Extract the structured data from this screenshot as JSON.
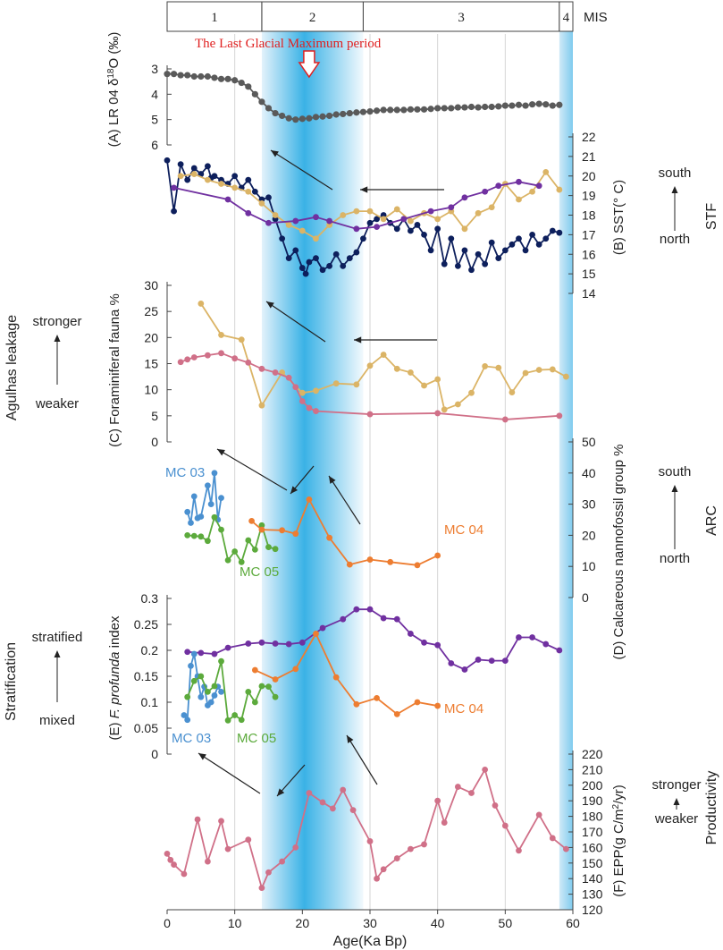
{
  "chart_data": {
    "type": "line",
    "title": "",
    "xlabel": "Age(Ka Bp)",
    "x_ticks": [
      0,
      10,
      20,
      30,
      40,
      50,
      60
    ],
    "xlim": [
      0,
      60
    ],
    "mis": {
      "label": "MIS",
      "stages": [
        {
          "name": "1",
          "start": 0,
          "end": 14
        },
        {
          "name": "2",
          "start": 14,
          "end": 29
        },
        {
          "name": "3",
          "start": 29,
          "end": 58
        },
        {
          "name": "4",
          "start": 58,
          "end": 60
        }
      ]
    },
    "lgm": {
      "label": "The Last Glacial Maximum period",
      "start": 14,
      "end": 29,
      "peak": 21
    },
    "stage4_band": {
      "start": 58,
      "end": 60
    },
    "panels": [
      {
        "id": "A",
        "ylabel": "(A) LR 04  δ18O (‰)",
        "ylabel_main": "(A) LR 04  δ",
        "ylabel_sup": "18",
        "ylabel_tail": "O (‰)",
        "ticks": [
          3,
          4,
          5,
          6
        ],
        "ylim": [
          3,
          6
        ],
        "inverted": true,
        "axis": "left",
        "series": [
          {
            "name": "LR04",
            "color": "#5a5a5a",
            "x": [
              0,
              1,
              2,
              3,
              4,
              5,
              6,
              7,
              8,
              9,
              10,
              11,
              12,
              13,
              14,
              15,
              16,
              17,
              18,
              19,
              20,
              21,
              22,
              23,
              24,
              25,
              26,
              27,
              28,
              29,
              30,
              31,
              32,
              33,
              34,
              35,
              36,
              37,
              38,
              39,
              40,
              41,
              42,
              43,
              44,
              45,
              46,
              47,
              48,
              49,
              50,
              51,
              52,
              53,
              54,
              55,
              56,
              57,
              58
            ],
            "y": [
              3.2,
              3.2,
              3.25,
              3.25,
              3.3,
              3.3,
              3.3,
              3.35,
              3.4,
              3.4,
              3.45,
              3.55,
              3.7,
              4.0,
              4.3,
              4.55,
              4.75,
              4.85,
              4.95,
              5.0,
              4.97,
              4.95,
              4.9,
              4.88,
              4.85,
              4.8,
              4.78,
              4.75,
              4.72,
              4.7,
              4.68,
              4.65,
              4.62,
              4.62,
              4.62,
              4.62,
              4.6,
              4.6,
              4.6,
              4.58,
              4.55,
              4.55,
              4.55,
              4.52,
              4.52,
              4.5,
              4.52,
              4.5,
              4.5,
              4.48,
              4.45,
              4.45,
              4.42,
              4.45,
              4.4,
              4.38,
              4.4,
              4.45,
              4.42
            ]
          }
        ]
      },
      {
        "id": "B",
        "ylabel": "(B) SST(° C)",
        "ticks": [
          14,
          15,
          16,
          17,
          18,
          19,
          20,
          21,
          22
        ],
        "ylim": [
          14,
          22
        ],
        "axis": "right",
        "side_label": "STF",
        "side_top": "south",
        "side_bottom": "north",
        "series": [
          {
            "name": "navy",
            "color": "#0d1f5c",
            "x": [
              0,
              1,
              2,
              3,
              4,
              5,
              6,
              6.5,
              7,
              8,
              9,
              10,
              11,
              12,
              13,
              14,
              15,
              16,
              17,
              18,
              19,
              20,
              20.5,
              21,
              22,
              23,
              24,
              25,
              26,
              27,
              28,
              29,
              30,
              31,
              32,
              33,
              34,
              35,
              36,
              37,
              38,
              39,
              40,
              41,
              42,
              43,
              44,
              45,
              46,
              47,
              48,
              49,
              50,
              51,
              52,
              53,
              54,
              55,
              56,
              57,
              58
            ],
            "y": [
              20.8,
              18.2,
              20.6,
              19.8,
              20.4,
              20.1,
              20.5,
              19.9,
              20.0,
              19.8,
              19.6,
              20.0,
              19.4,
              19.8,
              19.2,
              18.8,
              18.9,
              17.8,
              16.8,
              15.8,
              16.2,
              15.3,
              15.0,
              15.6,
              15.8,
              15.2,
              15.4,
              16.0,
              15.4,
              15.8,
              16.1,
              16.8,
              17.6,
              17.8,
              18.0,
              17.6,
              17.3,
              17.8,
              17.2,
              17.5,
              17.0,
              16.2,
              17.3,
              15.5,
              16.8,
              15.4,
              16.2,
              15.2,
              16.0,
              15.5,
              16.6,
              15.8,
              16.2,
              16.5,
              16.8,
              16.2,
              17.0,
              16.5,
              16.8,
              17.2,
              17.1
            ]
          },
          {
            "name": "tan",
            "color": "#dbb466",
            "x": [
              2,
              4,
              6,
              8,
              10,
              12,
              14,
              16,
              18,
              20,
              22,
              24,
              26,
              28,
              30,
              32,
              34,
              36,
              38,
              40,
              42,
              44,
              46,
              48,
              50,
              52,
              54,
              56,
              58
            ],
            "y": [
              20.0,
              20.1,
              19.8,
              19.6,
              19.4,
              19.2,
              18.6,
              18.0,
              17.5,
              17.2,
              16.8,
              17.5,
              18.0,
              18.2,
              18.2,
              17.8,
              18.3,
              17.7,
              18.1,
              17.8,
              18.2,
              17.3,
              18.1,
              18.4,
              19.6,
              18.8,
              19.2,
              20.2,
              19.3
            ]
          },
          {
            "name": "purple",
            "color": "#7030a0",
            "x": [
              1,
              9,
              12,
              15,
              19,
              22,
              24,
              28,
              31,
              35,
              39,
              42,
              44,
              47,
              49,
              52,
              55
            ],
            "y": [
              19.4,
              18.8,
              18.1,
              17.6,
              17.7,
              17.9,
              17.7,
              17.3,
              17.4,
              17.8,
              18.2,
              18.4,
              18.9,
              19.2,
              19.5,
              19.7,
              19.5
            ]
          }
        ]
      },
      {
        "id": "C",
        "ylabel": "(C) Foraminiferal fauna %",
        "ticks": [
          0,
          5,
          10,
          15,
          20,
          25,
          30
        ],
        "ylim": [
          0,
          30
        ],
        "axis": "left",
        "side_label": "Agulhas leakage",
        "side_top": "stronger",
        "side_bottom": "weaker",
        "series": [
          {
            "name": "tan",
            "color": "#dbb466",
            "x": [
              5,
              8,
              11,
              14,
              17,
              20,
              22,
              25,
              28,
              30,
              32,
              34,
              36,
              38,
              40,
              41,
              43,
              45,
              47,
              49,
              51,
              53,
              55,
              57,
              59
            ],
            "y": [
              26.5,
              20.5,
              19.6,
              7.0,
              13.3,
              9.4,
              9.8,
              11.2,
              11.0,
              14.6,
              16.7,
              14.0,
              13.3,
              10.8,
              12.0,
              6.2,
              7.2,
              9.4,
              14.5,
              14.2,
              9.5,
              13.2,
              13.8,
              13.9,
              12.5
            ]
          },
          {
            "name": "pink",
            "color": "#d07088",
            "x": [
              2,
              3,
              4,
              6,
              8,
              10,
              12,
              14,
              16,
              18,
              19,
              20,
              21,
              22,
              30,
              40,
              50,
              58
            ],
            "y": [
              15.3,
              15.8,
              16.2,
              16.6,
              17.0,
              16.0,
              15.2,
              14.0,
              13.3,
              12.3,
              10.5,
              7.8,
              6.5,
              5.9,
              5.3,
              5.5,
              4.3,
              5.0
            ]
          }
        ]
      },
      {
        "id": "D",
        "ylabel": "(D) Calcareous nannofossil  group %",
        "ticks": [
          0,
          10,
          20,
          30,
          40,
          50
        ],
        "ylim": [
          0,
          50
        ],
        "axis": "right",
        "side_label": "ARC",
        "side_top": "south",
        "side_bottom": "north",
        "series": [
          {
            "name": "MC 03",
            "color": "#4a90d0",
            "x": [
              3,
              3.5,
              4,
              4.5,
              5,
              6,
              6.5,
              7,
              7.5,
              8
            ],
            "y": [
              27.5,
              24.0,
              32.5,
              25.5,
              26.0,
              36.0,
              30.0,
              40.0,
              25.0,
              32.0
            ]
          },
          {
            "name": "MC 05",
            "color": "#5caa3c",
            "x": [
              3,
              4,
              5,
              6,
              7,
              8,
              9,
              10,
              11,
              12,
              13,
              14,
              15,
              16
            ],
            "y": [
              20.0,
              19.8,
              19.6,
              18.2,
              25.8,
              21.8,
              12.0,
              14.8,
              11.4,
              18.4,
              15.4,
              23.2,
              16.2,
              15.6
            ]
          },
          {
            "name": "MC 04",
            "color": "#ed7d31",
            "x": [
              12.5,
              14,
              17,
              19,
              21,
              24,
              27,
              30,
              33,
              37,
              40
            ],
            "y": [
              24.6,
              21.8,
              21.6,
              20.5,
              31.5,
              19.2,
              10.6,
              12.2,
              11.4,
              10.4,
              13.5
            ]
          }
        ]
      },
      {
        "id": "E",
        "ylabel_prefix": "(E) ",
        "ylabel_italic": "F. profunda",
        "ylabel_suffix": " index",
        "ticks": [
          0,
          0.05,
          0.1,
          0.15,
          0.2,
          0.25,
          0.3
        ],
        "tick_labels": [
          "0",
          "0.05",
          "0.1",
          "0.15",
          "0.2",
          "0.25",
          "0.3"
        ],
        "ylim": [
          0,
          0.3
        ],
        "axis": "left",
        "side_label": "Stratification",
        "side_top": "stratified",
        "side_bottom": "mixed",
        "series": [
          {
            "name": "purple",
            "color": "#7030a0",
            "x": [
              3,
              5,
              7,
              9,
              12,
              14,
              16,
              18,
              20,
              23,
              26,
              28,
              30,
              32,
              34,
              36,
              38,
              40,
              42,
              44,
              46,
              48,
              50,
              52,
              54,
              56,
              58
            ],
            "y": [
              0.197,
              0.195,
              0.193,
              0.205,
              0.213,
              0.215,
              0.213,
              0.212,
              0.215,
              0.243,
              0.26,
              0.279,
              0.279,
              0.262,
              0.26,
              0.232,
              0.215,
              0.21,
              0.175,
              0.163,
              0.182,
              0.18,
              0.18,
              0.225,
              0.225,
              0.212,
              0.2
            ]
          },
          {
            "name": "MC 03",
            "color": "#4a90d0",
            "x": [
              2.5,
              3,
              3.5,
              4,
              4.5,
              5,
              5.5,
              6,
              6.5,
              7,
              7.5,
              8
            ],
            "y": [
              0.075,
              0.066,
              0.17,
              0.193,
              0.15,
              0.11,
              0.13,
              0.094,
              0.1,
              0.113,
              0.13,
              0.12
            ]
          },
          {
            "name": "MC 05",
            "color": "#5caa3c",
            "x": [
              3,
              4,
              5,
              6,
              7,
              8,
              9,
              10,
              11,
              12,
              13,
              14,
              15,
              16
            ],
            "y": [
              0.11,
              0.141,
              0.15,
              0.12,
              0.131,
              0.179,
              0.065,
              0.075,
              0.066,
              0.12,
              0.1,
              0.131,
              0.13,
              0.11
            ]
          },
          {
            "name": "MC 04",
            "color": "#ed7d31",
            "x": [
              13,
              16,
              19,
              22,
              25,
              28,
              31,
              34,
              37,
              40
            ],
            "y": [
              0.162,
              0.144,
              0.164,
              0.232,
              0.148,
              0.096,
              0.108,
              0.077,
              0.1,
              0.093
            ]
          }
        ]
      },
      {
        "id": "F",
        "ylabel": "(F) EPP(g C/m2/yr)",
        "ylabel_main": "(F) EPP(g C/m",
        "ylabel_sup": "2",
        "ylabel_tail": "/yr)",
        "ticks": [
          120,
          130,
          140,
          150,
          160,
          170,
          180,
          190,
          200,
          210,
          220
        ],
        "ylim": [
          120,
          220
        ],
        "axis": "right",
        "side_label": "Productivity",
        "side_top": "stronger",
        "side_bottom": "weaker",
        "series": [
          {
            "name": "EPP",
            "color": "#d07088",
            "x": [
              0,
              0.5,
              1,
              2.5,
              4.5,
              6,
              8,
              9,
              12,
              14,
              15,
              17,
              19,
              21,
              23,
              24.5,
              26,
              27.5,
              30,
              31,
              32,
              34,
              36,
              38,
              40,
              41,
              43,
              45,
              47,
              48.5,
              50,
              52,
              55,
              57,
              59
            ],
            "y": [
              156,
              152,
              149,
              143,
              178,
              151,
              177,
              159,
              165,
              134,
              144,
              151,
              160,
              195,
              189,
              185,
              197,
              184,
              164,
              140,
              146,
              153,
              159,
              162,
              190,
              176,
              199,
              195,
              210,
              187,
              174,
              158,
              181,
              166,
              159
            ]
          }
        ]
      }
    ],
    "annotations": {
      "mc03_labels": [
        "MC 03",
        "MC 03"
      ],
      "mc04_labels": [
        "MC 04",
        "MC 04"
      ],
      "mc05_labels": [
        "MC 05",
        "MC 05"
      ]
    }
  }
}
